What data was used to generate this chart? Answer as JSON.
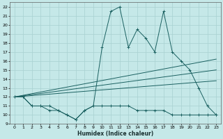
{
  "xlabel": "Humidex (Indice chaleur)",
  "bg_color": "#c5e8e8",
  "grid_color": "#a8d0d0",
  "line_color": "#1a6060",
  "xlim": [
    -0.5,
    23.5
  ],
  "ylim": [
    9,
    22.5
  ],
  "xticks": [
    0,
    1,
    2,
    3,
    4,
    5,
    6,
    7,
    8,
    9,
    10,
    11,
    12,
    13,
    14,
    15,
    16,
    17,
    18,
    19,
    20,
    21,
    22,
    23
  ],
  "yticks": [
    9,
    10,
    11,
    12,
    13,
    14,
    15,
    16,
    17,
    18,
    19,
    20,
    21,
    22
  ],
  "series2_x": [
    0,
    1,
    2,
    3,
    4,
    5,
    6,
    7,
    8,
    9,
    10,
    11,
    12,
    13,
    14,
    15,
    16,
    17,
    18,
    19,
    20,
    21,
    22,
    23
  ],
  "series2_y": [
    12,
    12,
    11,
    11,
    11,
    10.5,
    10,
    9.5,
    10.5,
    11,
    17.5,
    21.5,
    22,
    17.5,
    19.5,
    18.5,
    17,
    21.5,
    17,
    16,
    15,
    13,
    11,
    10
  ],
  "series1_x": [
    0,
    1,
    2,
    3,
    4,
    5,
    6,
    7,
    8,
    9,
    10,
    11,
    12,
    13,
    14,
    15,
    16,
    17,
    18,
    19,
    20,
    21,
    22,
    23
  ],
  "series1_y": [
    12,
    12,
    11,
    11,
    10.5,
    10.5,
    10,
    9.5,
    10.5,
    11,
    11,
    11,
    11,
    11,
    10.5,
    10.5,
    10.5,
    10.5,
    10,
    10,
    10,
    10,
    10,
    10
  ],
  "line1_x": [
    0,
    23
  ],
  "line1_y": [
    12.0,
    16.2
  ],
  "line2_x": [
    0,
    23
  ],
  "line2_y": [
    12.0,
    15.0
  ],
  "line3_x": [
    0,
    23
  ],
  "line3_y": [
    12.0,
    13.8
  ]
}
